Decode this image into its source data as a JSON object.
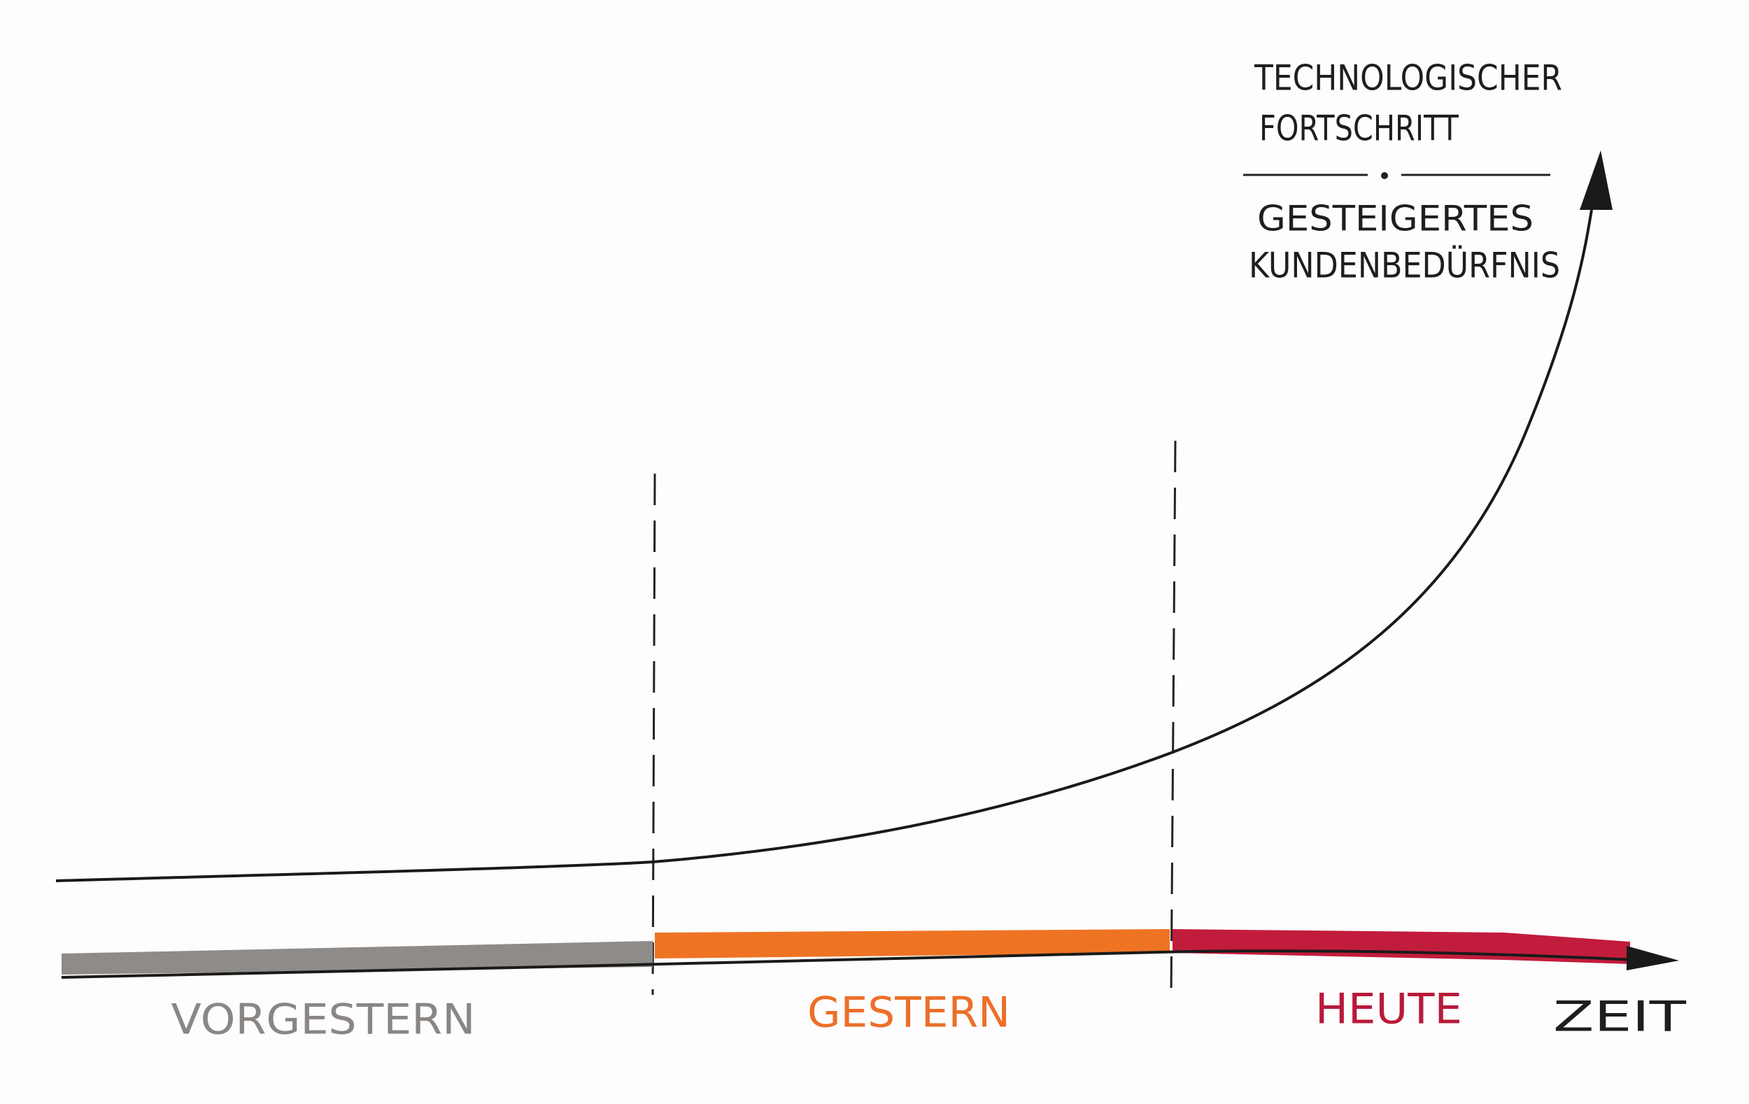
{
  "annotation": {
    "numerator": [
      "TECHNOLOGISCHER",
      "FORTSCHRITT"
    ],
    "denominator": [
      "GESTEIGERTES",
      "KUNDENBEDÜRFNIS"
    ]
  },
  "periods": [
    "VORGESTERN",
    "GESTERN",
    "HEUTE"
  ],
  "axis_label": "ZEIT"
}
